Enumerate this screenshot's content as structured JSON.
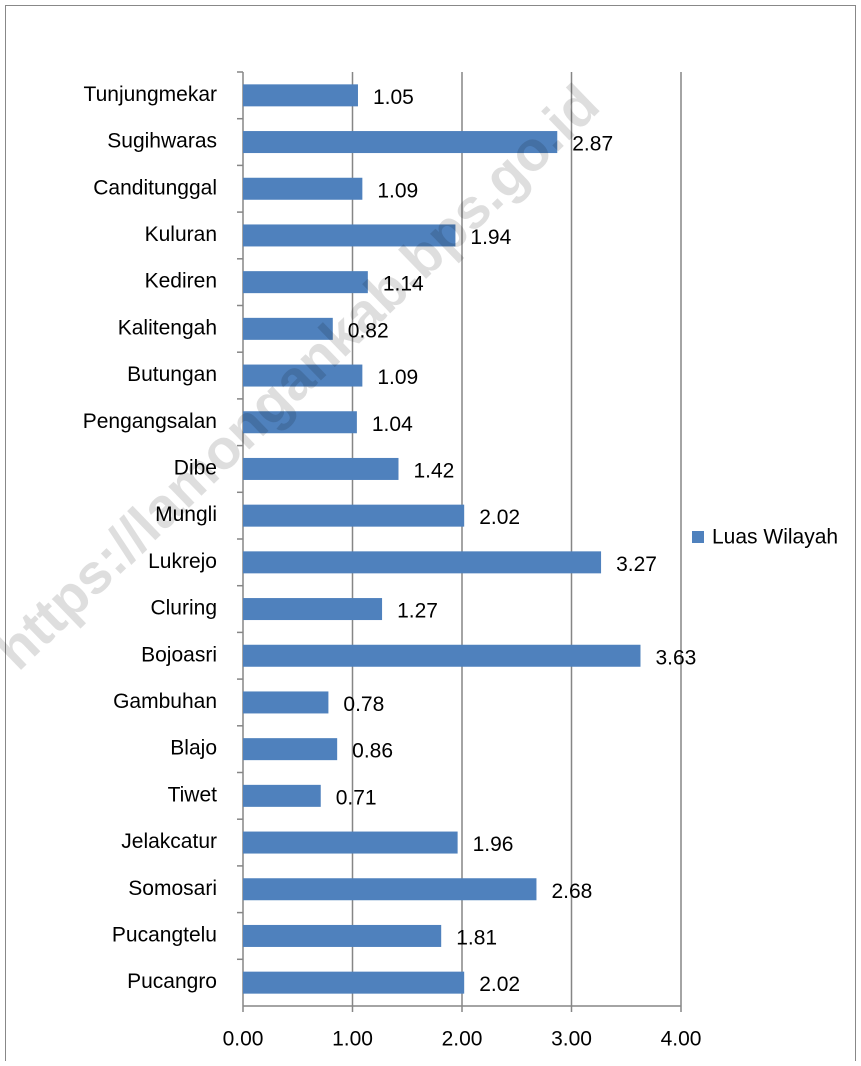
{
  "chart_data": {
    "type": "bar",
    "orientation": "horizontal",
    "categories": [
      "Tunjungmekar",
      "Sugihwaras",
      "Canditunggal",
      "Kuluran",
      "Kediren",
      "Kalitengah",
      "Butungan",
      "Pengangsalan",
      "Dibe",
      "Mungli",
      "Lukrejo",
      "Cluring",
      "Bojoasri",
      "Gambuhan",
      "Blajo",
      "Tiwet",
      "Jelakcatur",
      "Somosari",
      "Pucangtelu",
      "Pucangro"
    ],
    "series": [
      {
        "name": "Luas Wilayah",
        "color": "#4f81bd",
        "values": [
          1.05,
          2.87,
          1.09,
          1.94,
          1.14,
          0.82,
          1.09,
          1.04,
          1.42,
          2.02,
          3.27,
          1.27,
          3.63,
          0.78,
          0.86,
          0.71,
          1.96,
          2.68,
          1.81,
          2.02
        ]
      }
    ],
    "xlim": [
      0,
      4
    ],
    "xticks": [
      {
        "value": 0,
        "label": "0.00"
      },
      {
        "value": 1,
        "label": "1.00"
      },
      {
        "value": 2,
        "label": "2.00"
      },
      {
        "value": 3,
        "label": "3.00"
      },
      {
        "value": 4,
        "label": "4.00"
      }
    ],
    "grid": true,
    "legend": "right",
    "watermark": "https://lamongankab.bps.go.id"
  }
}
